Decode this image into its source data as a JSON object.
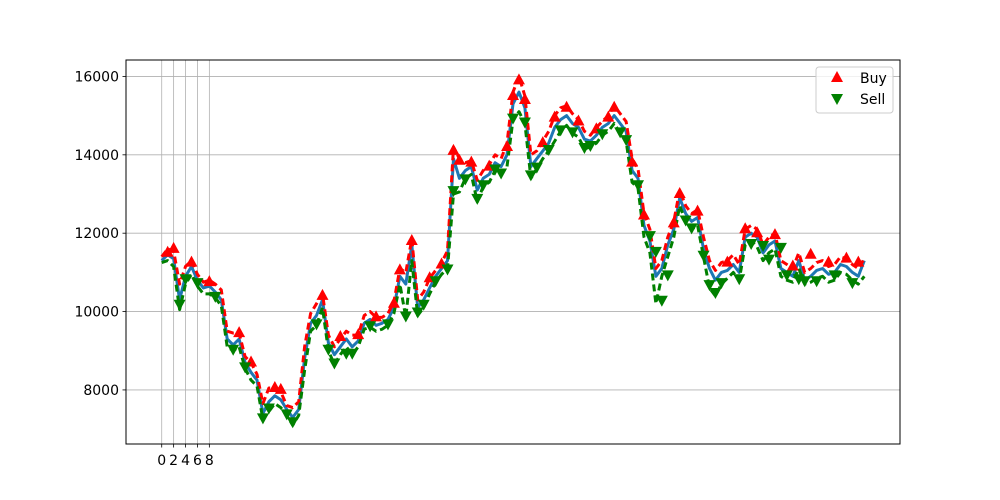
{
  "chart_data": {
    "type": "line",
    "title": "",
    "xlabel": "",
    "ylabel": "",
    "grid": true,
    "xlim": [
      -6,
      124
    ],
    "ylim": [
      6620,
      16420
    ],
    "x_ticks": [
      0,
      2,
      4,
      6,
      8
    ],
    "x_tick_labels": [
      "0",
      "2",
      "4",
      "6",
      "8"
    ],
    "y_ticks": [
      8000,
      10000,
      12000,
      14000,
      16000
    ],
    "y_tick_labels": [
      "8000",
      "10000",
      "12000",
      "14000",
      "16000"
    ],
    "legend_position": "top-right",
    "legend": [
      {
        "label": "Buy",
        "marker": "triangle-up",
        "color": "#ff0000"
      },
      {
        "label": "Sell",
        "marker": "triangle-down",
        "color": "#008000"
      }
    ],
    "colors": {
      "price_line": "#1f77b4",
      "high_line": "#ff0000",
      "low_line": "#008000",
      "grid": "#b0b0b0"
    },
    "series": [
      {
        "name": "",
        "role": "price",
        "x": [
          0,
          1,
          2,
          3,
          4,
          5,
          6,
          7,
          8,
          9,
          10,
          11,
          12,
          13,
          14,
          15,
          16,
          17,
          18,
          19,
          20,
          21,
          22,
          23,
          24,
          25,
          26,
          27,
          28,
          29,
          30,
          31,
          32,
          33,
          34,
          35,
          36,
          37,
          38,
          39,
          40,
          41,
          42,
          43,
          44,
          45,
          46,
          47,
          48,
          49,
          50,
          51,
          52,
          53,
          54,
          55,
          56,
          57,
          58,
          59,
          60,
          61,
          62,
          63,
          64,
          65,
          66,
          67,
          68,
          69,
          70,
          71,
          72,
          73,
          74,
          75,
          76,
          77,
          78,
          79,
          80,
          81,
          82,
          83,
          84,
          85,
          86,
          87,
          88,
          89,
          90,
          91,
          92,
          93,
          94,
          95,
          96,
          97,
          98,
          99,
          100,
          101,
          102,
          103,
          104,
          105,
          106,
          107,
          108,
          109,
          110,
          111,
          112,
          113,
          114,
          115,
          116,
          117,
          118
        ],
        "values": [
          11300,
          11450,
          11350,
          10300,
          10900,
          11150,
          10800,
          10600,
          10650,
          10500,
          10300,
          9300,
          9150,
          9300,
          8700,
          8450,
          8250,
          7400,
          7700,
          7850,
          7750,
          7500,
          7300,
          7500,
          8800,
          9700,
          9900,
          10300,
          9200,
          8900,
          9100,
          9300,
          9100,
          9250,
          9700,
          9800,
          9650,
          9700,
          9800,
          10100,
          10900,
          10700,
          11700,
          10100,
          10300,
          10600,
          10900,
          11100,
          11300,
          13900,
          13400,
          13600,
          13700,
          13100,
          13400,
          13500,
          13800,
          13700,
          14000,
          15300,
          15600,
          15200,
          13700,
          13900,
          14100,
          14300,
          14700,
          14900,
          15000,
          14800,
          14700,
          14400,
          14350,
          14500,
          14700,
          14800,
          15000,
          14800,
          14600,
          13600,
          13400,
          12200,
          11800,
          10900,
          11100,
          11700,
          12100,
          12900,
          12500,
          12300,
          12400,
          11600,
          11100,
          10800,
          11000,
          11050,
          11200,
          11000,
          11900,
          12000,
          11900,
          11500,
          11700,
          11800,
          11100,
          11000,
          10900,
          11300,
          10800,
          10900,
          11050,
          11100,
          10950,
          11000,
          11200,
          11150,
          11000,
          10900,
          11300
        ]
      },
      {
        "name": "",
        "role": "high",
        "x": [
          0,
          1,
          2,
          3,
          4,
          5,
          6,
          7,
          8,
          9,
          10,
          11,
          12,
          13,
          14,
          15,
          16,
          17,
          18,
          19,
          20,
          21,
          22,
          23,
          24,
          25,
          26,
          27,
          28,
          29,
          30,
          31,
          32,
          33,
          34,
          35,
          36,
          37,
          38,
          39,
          40,
          41,
          42,
          43,
          44,
          45,
          46,
          47,
          48,
          49,
          50,
          51,
          52,
          53,
          54,
          55,
          56,
          57,
          58,
          59,
          60,
          61,
          62,
          63,
          64,
          65,
          66,
          67,
          68,
          69,
          70,
          71,
          72,
          73,
          74,
          75,
          76,
          77,
          78,
          79,
          80,
          81,
          82,
          83,
          84,
          85,
          86,
          87,
          88,
          89,
          90,
          91,
          92,
          93,
          94,
          95,
          96,
          97,
          98,
          99,
          100,
          101,
          102,
          103,
          104,
          105,
          106,
          107,
          108,
          109,
          110,
          111,
          112,
          113,
          114,
          115,
          116,
          117,
          118
        ],
        "values": [
          11400,
          11600,
          11550,
          10700,
          11150,
          11300,
          10950,
          10750,
          10800,
          10700,
          10550,
          9500,
          9450,
          9450,
          8850,
          8700,
          8400,
          7650,
          8050,
          8050,
          7950,
          7600,
          7550,
          7700,
          9100,
          9950,
          10200,
          10450,
          9400,
          9100,
          9300,
          9500,
          9400,
          9400,
          9900,
          10000,
          9850,
          9850,
          9950,
          10250,
          11100,
          11000,
          11850,
          10300,
          10500,
          10850,
          11050,
          11250,
          11550,
          14200,
          13900,
          13800,
          13850,
          13350,
          13600,
          13750,
          14000,
          13900,
          14300,
          15600,
          16000,
          15500,
          14000,
          14100,
          14350,
          14600,
          15000,
          15200,
          15250,
          15050,
          14900,
          14600,
          14500,
          14700,
          14850,
          15000,
          15250,
          15050,
          14850,
          13900,
          13650,
          12500,
          12100,
          11100,
          11300,
          11900,
          12300,
          13100,
          12700,
          12500,
          12600,
          11900,
          11300,
          11050,
          11250,
          11300,
          11450,
          11200,
          12100,
          12200,
          12100,
          11700,
          11900,
          12000,
          11300,
          11200,
          11100,
          11500,
          11000,
          11100,
          11250,
          11300,
          11150,
          11200,
          11400,
          11350,
          11200,
          11100,
          11350
        ]
      },
      {
        "name": "",
        "role": "low",
        "x": [
          0,
          1,
          2,
          3,
          4,
          5,
          6,
          7,
          8,
          9,
          10,
          11,
          12,
          13,
          14,
          15,
          16,
          17,
          18,
          19,
          20,
          21,
          22,
          23,
          24,
          25,
          26,
          27,
          28,
          29,
          30,
          31,
          32,
          33,
          34,
          35,
          36,
          37,
          38,
          39,
          40,
          41,
          42,
          43,
          44,
          45,
          46,
          47,
          48,
          49,
          50,
          51,
          52,
          53,
          54,
          55,
          56,
          57,
          58,
          59,
          60,
          61,
          62,
          63,
          64,
          65,
          66,
          67,
          68,
          69,
          70,
          71,
          72,
          73,
          74,
          75,
          76,
          77,
          78,
          79,
          80,
          81,
          82,
          83,
          84,
          85,
          86,
          87,
          88,
          89,
          90,
          91,
          92,
          93,
          94,
          95,
          96,
          97,
          98,
          99,
          100,
          101,
          102,
          103,
          104,
          105,
          106,
          107,
          108,
          109,
          110,
          111,
          112,
          113,
          114,
          115,
          116,
          117,
          118
        ],
        "values": [
          11250,
          11300,
          11150,
          10050,
          10700,
          10950,
          10650,
          10450,
          10450,
          10350,
          10150,
          9100,
          9000,
          9100,
          8550,
          8250,
          8100,
          7250,
          7450,
          7650,
          7550,
          7350,
          7100,
          7350,
          8500,
          9500,
          9650,
          10100,
          9000,
          8650,
          8900,
          9100,
          8900,
          9100,
          9550,
          9600,
          9500,
          9550,
          9650,
          9950,
          10700,
          9850,
          11300,
          9900,
          10100,
          10450,
          10750,
          10950,
          11100,
          13000,
          13050,
          13400,
          13500,
          12800,
          13200,
          13300,
          13600,
          13500,
          13700,
          14900,
          15100,
          14800,
          13400,
          13650,
          13900,
          14100,
          14350,
          14600,
          14750,
          14550,
          14450,
          14150,
          14200,
          14300,
          14500,
          14600,
          14800,
          14550,
          14350,
          13300,
          13150,
          11900,
          11500,
          10200,
          10900,
          11400,
          11900,
          12700,
          12300,
          12100,
          12200,
          11400,
          10600,
          10400,
          10700,
          10850,
          11000,
          10800,
          11700,
          11800,
          11650,
          11300,
          11500,
          11600,
          10900,
          10800,
          10750,
          11100,
          10700,
          10750,
          10850,
          10900,
          10750,
          10800,
          11000,
          10950,
          10800,
          10700,
          10900
        ]
      }
    ],
    "buy_signals": {
      "x": [
        1,
        2,
        5,
        8,
        13,
        15,
        19,
        20,
        27,
        30,
        33,
        36,
        39,
        40,
        42,
        45,
        47,
        49,
        50,
        52,
        55,
        58,
        59,
        60,
        61,
        64,
        66,
        68,
        70,
        73,
        75,
        76,
        79,
        81,
        86,
        87,
        90,
        95,
        98,
        100,
        103,
        106,
        109,
        112,
        115,
        117
      ],
      "y": [
        11500,
        11600,
        11250,
        10750,
        9450,
        8700,
        8050,
        8000,
        10400,
        9350,
        9400,
        9850,
        10200,
        11050,
        11800,
        10850,
        11200,
        14100,
        13850,
        13800,
        13700,
        14200,
        15500,
        15900,
        15400,
        14300,
        14950,
        15200,
        14850,
        14650,
        14950,
        15200,
        13800,
        12450,
        12250,
        13000,
        12550,
        11250,
        12100,
        12000,
        11950,
        11150,
        11450,
        11250,
        11350,
        11250
      ]
    },
    "sell_signals": {
      "x": [
        3,
        4,
        6,
        9,
        12,
        14,
        17,
        18,
        21,
        22,
        26,
        28,
        29,
        31,
        32,
        35,
        38,
        41,
        43,
        44,
        46,
        48,
        49,
        51,
        53,
        54,
        56,
        57,
        59,
        61,
        62,
        63,
        65,
        67,
        69,
        71,
        72,
        74,
        77,
        78,
        80,
        82,
        83,
        84,
        85,
        88,
        89,
        91,
        92,
        93,
        94,
        97,
        99,
        101,
        102,
        104,
        105,
        107,
        108,
        110,
        113,
        116
      ],
      "y": [
        10200,
        10850,
        10750,
        10400,
        9050,
        8600,
        7300,
        7550,
        7400,
        7200,
        9700,
        9050,
        8700,
        8950,
        8950,
        9650,
        9700,
        9900,
        10000,
        10200,
        10800,
        11100,
        13100,
        13400,
        12900,
        13250,
        13650,
        13550,
        14950,
        14850,
        13500,
        13700,
        14150,
        14650,
        14600,
        14200,
        14250,
        14550,
        14600,
        14400,
        13250,
        11950,
        11550,
        10300,
        10950,
        12350,
        12150,
        11450,
        10700,
        10500,
        10750,
        10850,
        11750,
        11700,
        11350,
        11650,
        10950,
        10850,
        10800,
        10800,
        10950,
        10750
      ]
    }
  }
}
